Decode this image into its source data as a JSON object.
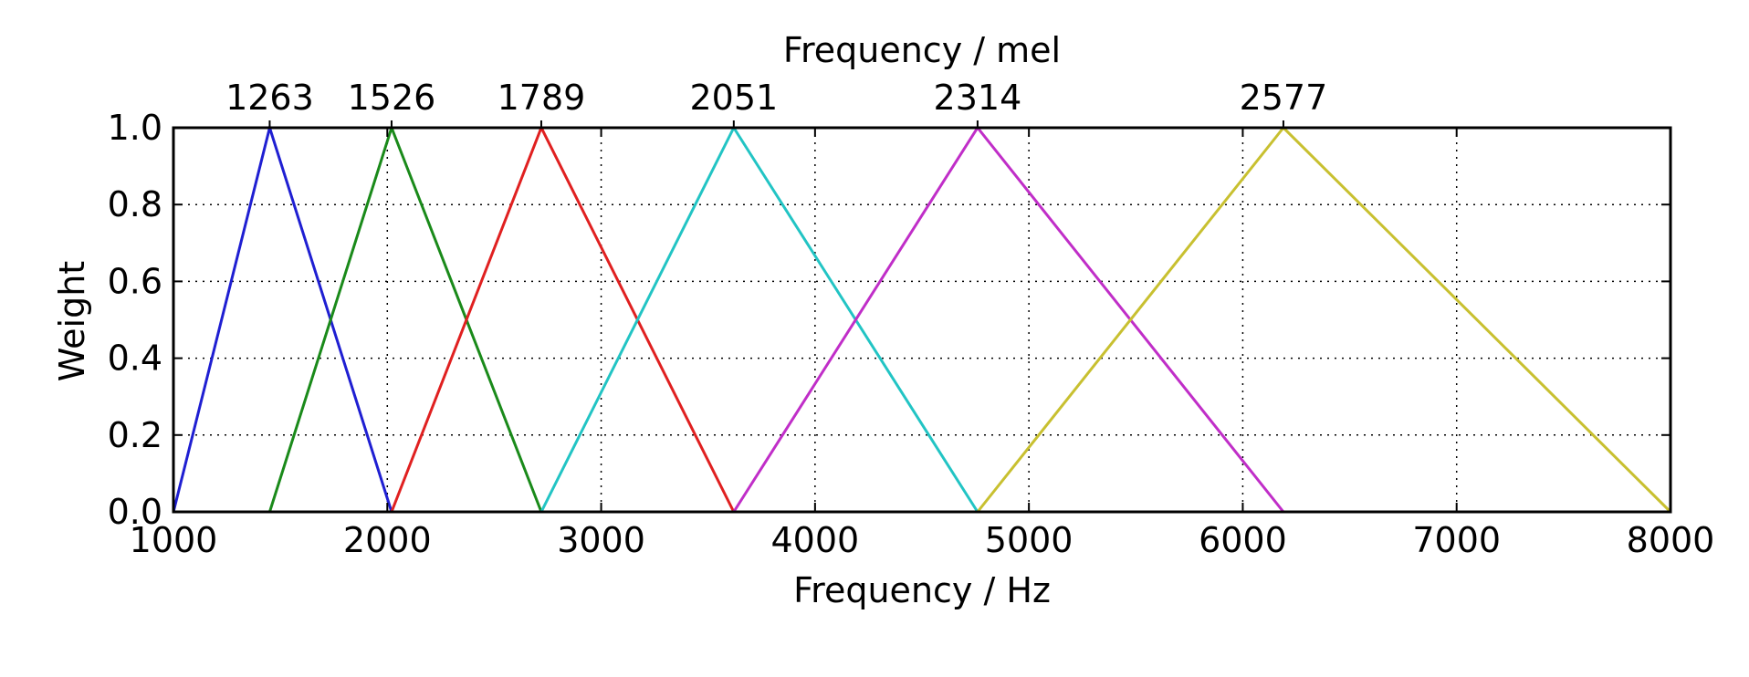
{
  "chart_data": {
    "type": "line",
    "xlabel": "Frequency / Hz",
    "ylabel": "Weight",
    "top_xlabel": "Frequency / mel",
    "xlim": [
      1000,
      8000
    ],
    "ylim": [
      0,
      1
    ],
    "xticks": [
      1000,
      2000,
      3000,
      4000,
      5000,
      6000,
      7000,
      8000
    ],
    "yticks": [
      0.0,
      0.2,
      0.4,
      0.6,
      0.8,
      1.0
    ],
    "xtick_labels": [
      "1000",
      "2000",
      "3000",
      "4000",
      "5000",
      "6000",
      "7000",
      "8000"
    ],
    "ytick_labels": [
      "0.0",
      "0.2",
      "0.4",
      "0.6",
      "0.8",
      "1.0"
    ],
    "top_ticks": [
      1450,
      2020,
      2720,
      3620,
      4760,
      6190
    ],
    "top_tick_labels": [
      "1263",
      "1526",
      "1789",
      "2051",
      "2314",
      "2577"
    ],
    "grid": true,
    "series": [
      {
        "color": "#1f1fd2",
        "x": [
          1000,
          1450,
          2020
        ],
        "y": [
          0,
          1,
          0
        ]
      },
      {
        "color": "#1a8a1a",
        "x": [
          1450,
          2020,
          2720
        ],
        "y": [
          0,
          1,
          0
        ]
      },
      {
        "color": "#e02020",
        "x": [
          2020,
          2720,
          3620
        ],
        "y": [
          0,
          1,
          0
        ]
      },
      {
        "color": "#22c4c4",
        "x": [
          2720,
          3620,
          4760
        ],
        "y": [
          0,
          1,
          0
        ]
      },
      {
        "color": "#c02ec8",
        "x": [
          3620,
          4760,
          6190
        ],
        "y": [
          0,
          1,
          0
        ]
      },
      {
        "color": "#c8c030",
        "x": [
          4760,
          6190,
          8000
        ],
        "y": [
          0,
          1,
          0
        ]
      }
    ]
  }
}
